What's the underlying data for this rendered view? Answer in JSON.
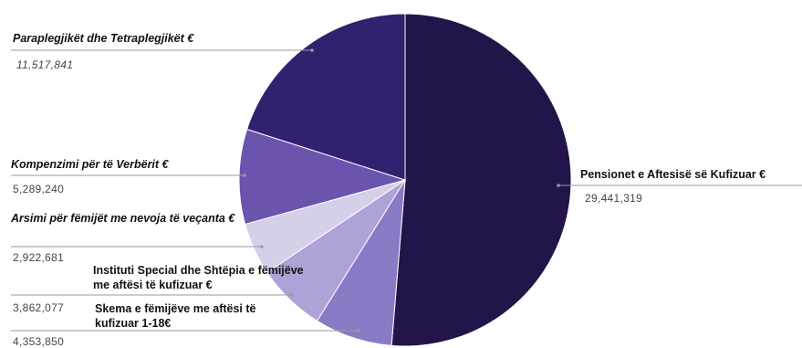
{
  "chart_data": {
    "type": "pie",
    "title": "",
    "legend": "none",
    "colors": {
      "pensionet": "#231549",
      "paraplegjiket": "#33206e",
      "kompenzimi": "#6a54ae",
      "arsimi": "#d6cfea",
      "instituti": "#aea2d6",
      "skema": "#8a79c4"
    },
    "slices": [
      {
        "key": "pensionet",
        "label": "Pensionet e Aftesisë së Kufizuar €",
        "value": 29441319,
        "value_text": "29,441,319"
      },
      {
        "key": "skema",
        "label": "Skema e fëmijëve me aftësi të kufizuar 1-18€",
        "value": 4353850,
        "value_text": "4,353,850"
      },
      {
        "key": "instituti",
        "label": "Instituti Special dhe Shtëpia e fëmijëve me aftësi të kufizuar €",
        "value": 3862077,
        "value_text": "3,862,077"
      },
      {
        "key": "arsimi",
        "label": "Arsimi për fëmijët me nevoja të veçanta €",
        "value": 2922681,
        "value_text": "2,922,681"
      },
      {
        "key": "kompenzimi",
        "label": "Kompenzimi për të Verbërit €",
        "value": 5289240,
        "value_text": "5,289,240"
      },
      {
        "key": "paraplegjiket",
        "label": "Paraplegjikët dhe Tetraplegjikët €",
        "value": 11517841,
        "value_text": "11,517,841"
      }
    ]
  }
}
